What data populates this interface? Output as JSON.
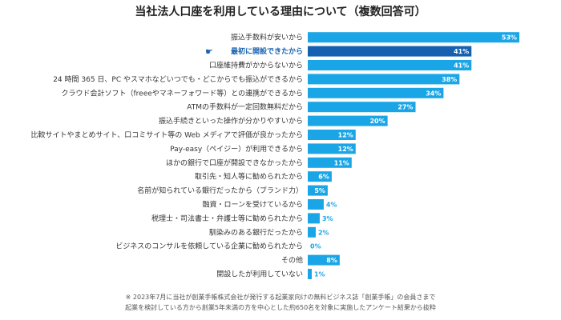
{
  "chart_data": {
    "type": "bar",
    "orientation": "horizontal",
    "title": "当社法人口座を利用している理由について（複数回答可）",
    "unit": "%",
    "xlim": [
      0,
      55
    ],
    "highlight_index": 1,
    "categories": [
      "振込手数料が安いから",
      "最初に開設できたから",
      "口座維持費がかからないから",
      "24 時間 365 日、PC やスマホなどいつでも・どこからでも振込ができるから",
      "クラウド会計ソフト（freeeやマネーフォワード等）との連携ができるから",
      "ATMの手数料が一定回数無料だから",
      "振込手続きといった操作が分かりやすいから",
      "比較サイトやまとめサイト、口コミサイト等の Web メディアで評価が良かったから",
      "Pay-easy（ペイジー）が利用できるから",
      "ほかの銀行で口座が開設できなかったから",
      "取引先・知人等に勧められたから",
      "名前が知られている銀行だったから（ブランド力）",
      "融資・ローンを受けているから",
      "税理士・司法書士・弁護士等に勧められたから",
      "馴染みのある銀行だったから",
      "ビジネスのコンサルを依頼している企業に勧められたから",
      "その他",
      "開設したが利用していない"
    ],
    "values": [
      53,
      41,
      41,
      38,
      34,
      27,
      20,
      12,
      12,
      11,
      6,
      5,
      4,
      3,
      2,
      0,
      8,
      1
    ],
    "value_labels": [
      "53%",
      "41%",
      "41%",
      "38%",
      "34%",
      "27%",
      "20%",
      "12%",
      "12%",
      "11%",
      "6%",
      "5%",
      "4%",
      "3%",
      "2%",
      "0%",
      "8%",
      "1%"
    ],
    "colors": {
      "bar": "#1aa6e6",
      "highlight_bar": "#1560b0",
      "label_inside": "#ffffff",
      "label_outside": "#1aa6e6",
      "highlight_text": "#1560b0"
    }
  },
  "highlight_icon": "hand-pointer-icon",
  "footnote": [
    "※ 2023年7月に当社が創業手帳株式会社が発行する起業家向けの無料ビジネス誌「創業手帳」の会員さまで",
    "起業を検討している方から創業5年未満の方を中心とした約650名を対象に実施したアンケート結果から抜粋"
  ]
}
